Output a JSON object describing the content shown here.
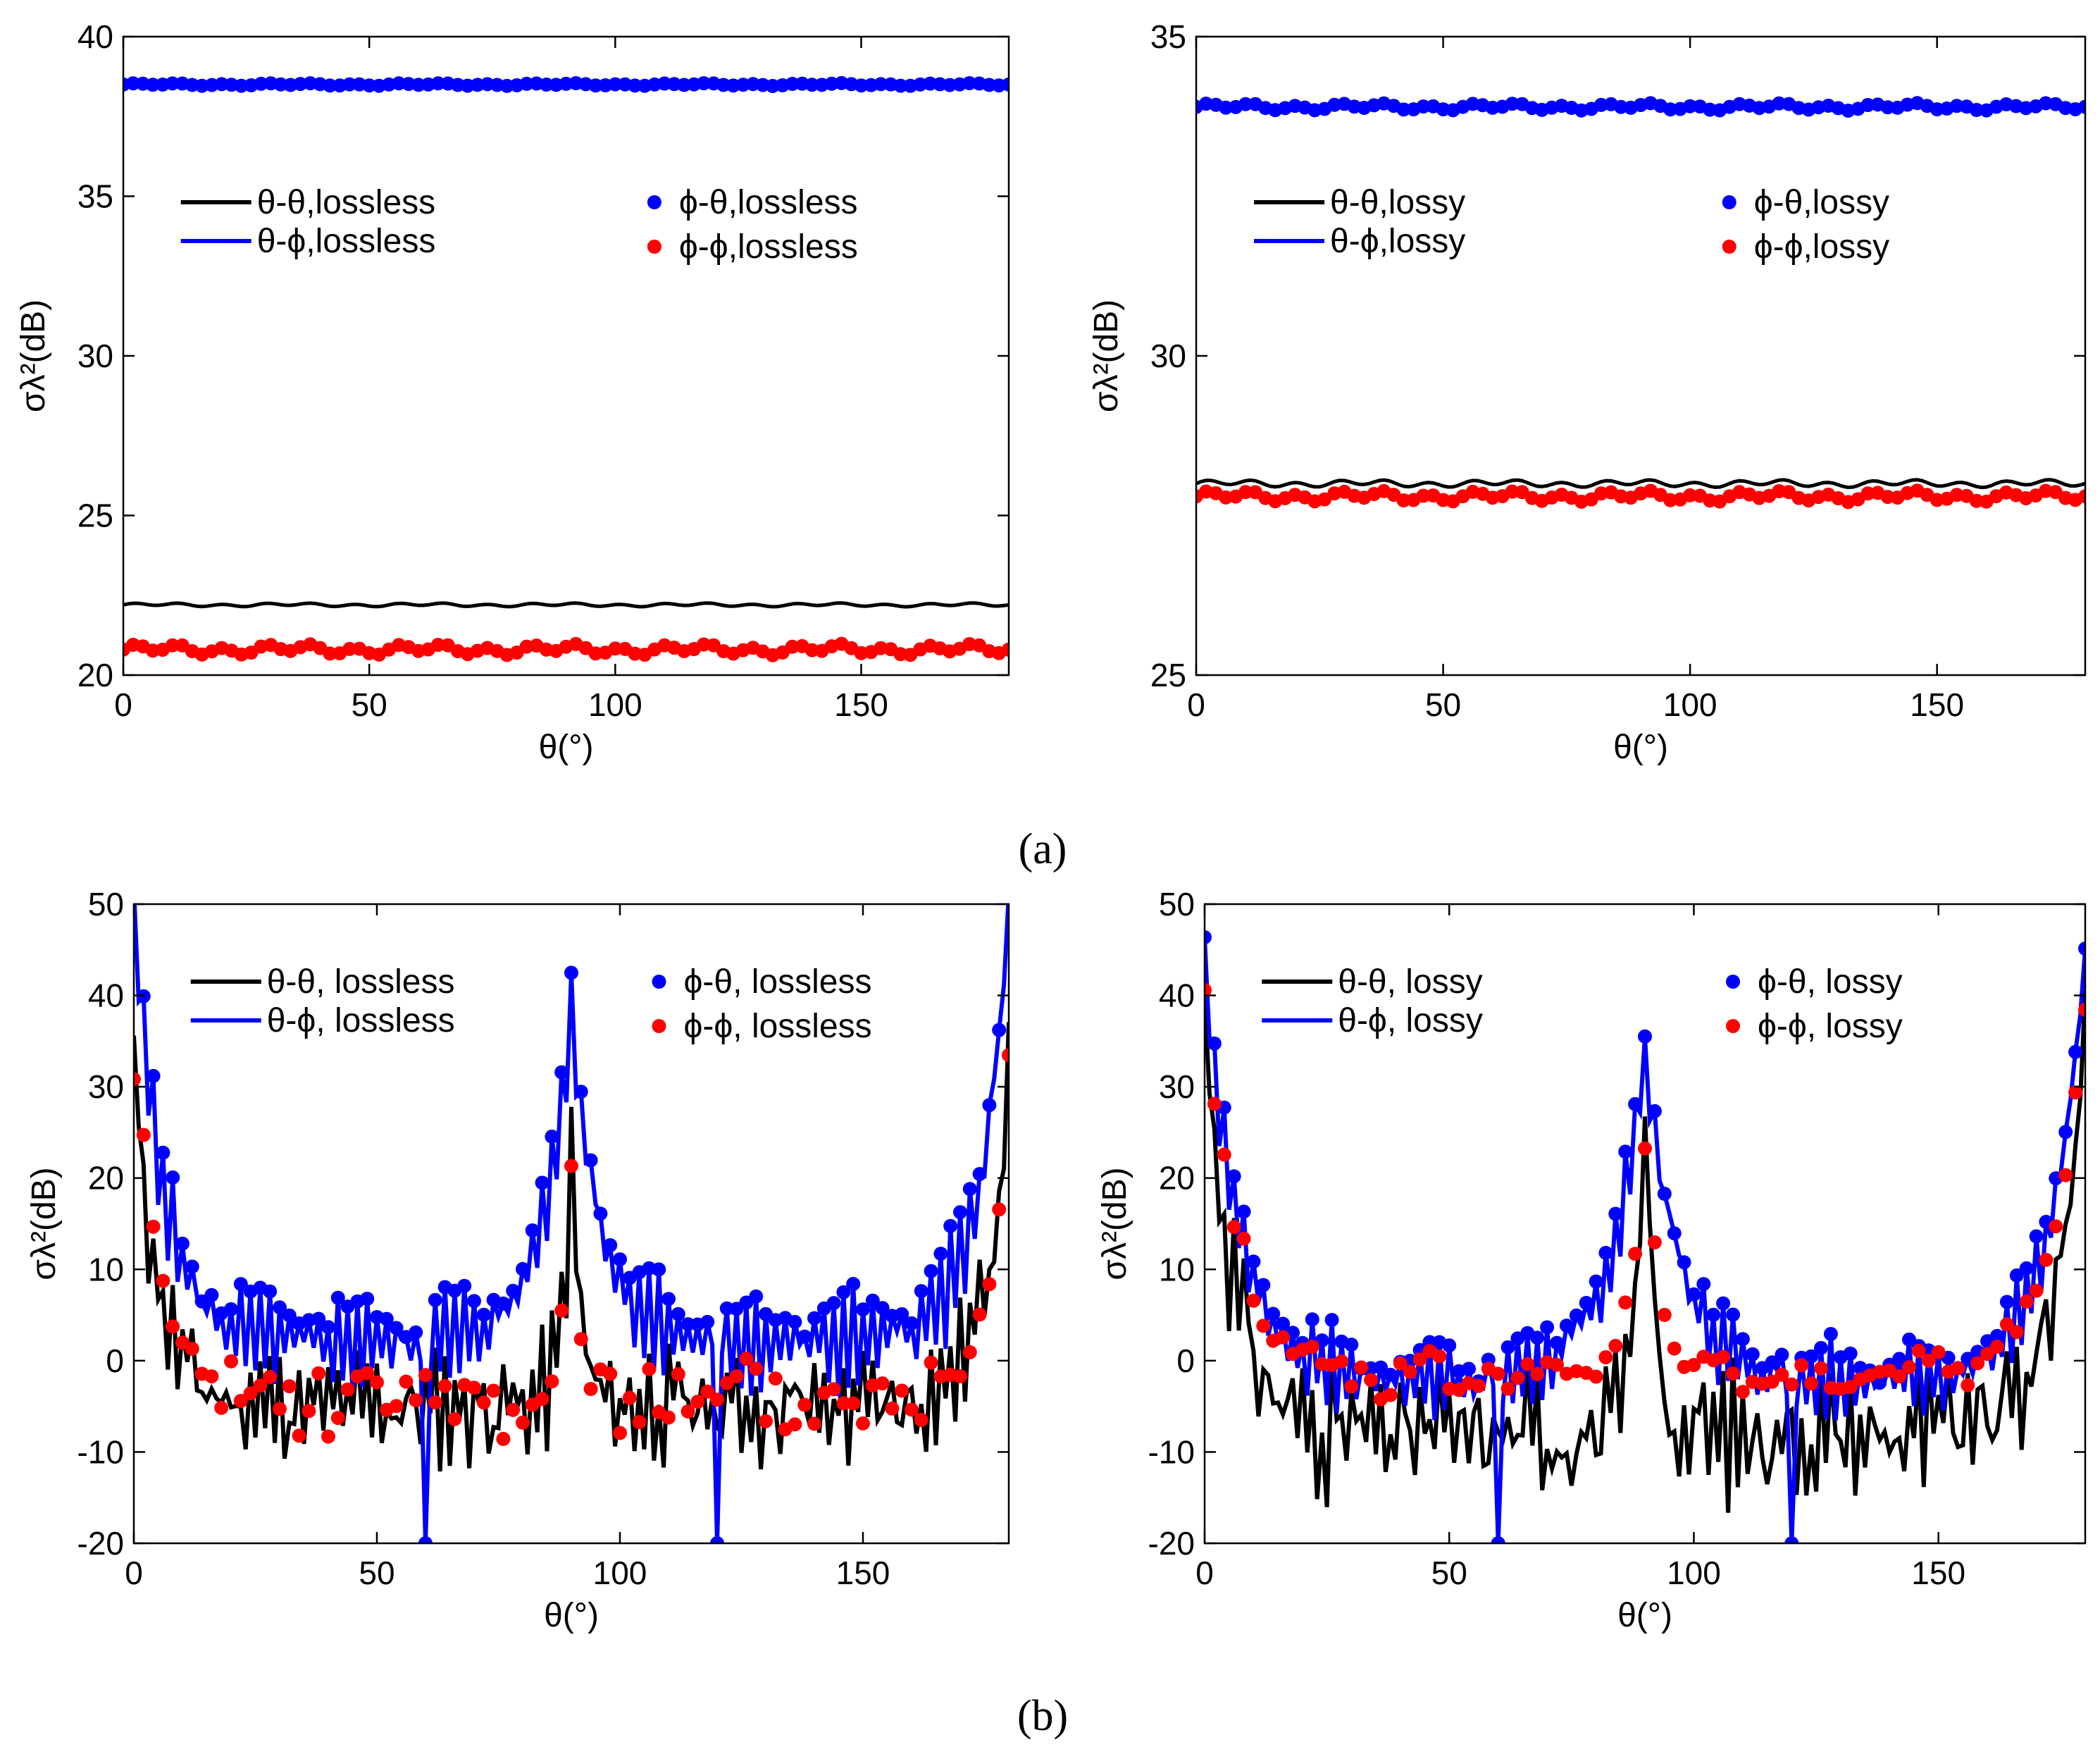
{
  "figure": {
    "label_a": "(a)",
    "label_b": "(b)"
  },
  "colors": {
    "black": "#000000",
    "blue": "#0000ff",
    "red": "#ff0000"
  },
  "chart_data": [
    {
      "id": "a-left",
      "type": "line",
      "title": "",
      "xlabel": "θ(°)",
      "ylabel": "σλ²(dB)",
      "xlim": [
        0,
        180
      ],
      "ylim": [
        20,
        40
      ],
      "xticks": [
        0,
        50,
        100,
        150
      ],
      "yticks": [
        20,
        25,
        30,
        35,
        40
      ],
      "grid": false,
      "legend_placement": "upper-middle, two columns",
      "series": [
        {
          "name": "θ-θ,lossless",
          "style": "line",
          "color": "black",
          "gen": {
            "kind": "flat",
            "level": 22.2,
            "ripple": 0.04
          }
        },
        {
          "name": "θ-ϕ,lossless",
          "style": "line",
          "color": "blue",
          "gen": {
            "kind": "flat",
            "level": 38.5,
            "ripple": 0.02
          }
        },
        {
          "name": "ϕ-θ,lossless",
          "style": "marker",
          "color": "blue",
          "gen": {
            "kind": "flat",
            "level": 38.5,
            "ripple": 0.03
          }
        },
        {
          "name": "ϕ-ϕ,lossless",
          "style": "marker",
          "color": "red",
          "gen": {
            "kind": "flat",
            "level": 20.8,
            "ripple": 0.12
          }
        }
      ]
    },
    {
      "id": "a-right",
      "type": "line",
      "title": "",
      "xlabel": "θ(°)",
      "ylabel": "σλ²(dB)",
      "xlim": [
        0,
        180
      ],
      "ylim": [
        25,
        35
      ],
      "xticks": [
        0,
        50,
        100,
        150
      ],
      "yticks": [
        25,
        30,
        35
      ],
      "grid": false,
      "legend_placement": "upper-middle, two columns",
      "series": [
        {
          "name": "θ-θ,lossy",
          "style": "line",
          "color": "black",
          "gen": {
            "kind": "flat",
            "level": 28.0,
            "ripple": 0.04
          }
        },
        {
          "name": "θ-ϕ,lossy",
          "style": "line",
          "color": "blue",
          "gen": {
            "kind": "flat",
            "level": 33.9,
            "ripple": 0.03
          }
        },
        {
          "name": "ϕ-θ,lossy",
          "style": "marker",
          "color": "blue",
          "gen": {
            "kind": "flat",
            "level": 33.9,
            "ripple": 0.04
          }
        },
        {
          "name": "ϕ-ϕ,lossy",
          "style": "marker",
          "color": "red",
          "gen": {
            "kind": "flat",
            "level": 27.8,
            "ripple": 0.06
          }
        }
      ]
    },
    {
      "id": "b-left",
      "type": "line",
      "title": "",
      "xlabel": "θ(°)",
      "ylabel": "σλ²(dB)",
      "xlim": [
        0,
        180
      ],
      "ylim": [
        -20,
        50
      ],
      "xticks": [
        0,
        50,
        100,
        150
      ],
      "yticks": [
        -20,
        -10,
        0,
        10,
        20,
        30,
        40,
        50
      ],
      "grid": false,
      "legend_placement": "upper-middle, two columns",
      "series": [
        {
          "name": "θ-θ, lossless",
          "style": "line",
          "color": "black",
          "gen": {
            "kind": "scatter",
            "edge": 32,
            "floor": -5,
            "decay": 5,
            "center": 22,
            "cwidth": 2.0,
            "osc": 4,
            "noise": 4,
            "seed": 11
          }
        },
        {
          "name": "θ-ϕ, lossless",
          "style": "line",
          "color": "blue",
          "gen": {
            "kind": "scatter",
            "edge": 49,
            "floor": 2,
            "decay": 6,
            "center": 38.5,
            "cwidth": 6,
            "osc": 5,
            "noise": 1.5,
            "seed": 5,
            "dips": [
              [
                60,
                -20
              ],
              [
                120,
                -20
              ]
            ]
          }
        },
        {
          "name": "ϕ-θ, lossless",
          "style": "marker",
          "color": "blue",
          "gen": {
            "kind": "scatter",
            "edge": 49,
            "floor": 2,
            "decay": 6,
            "center": 38.5,
            "cwidth": 6,
            "osc": 5,
            "noise": 1.5,
            "seed": 5,
            "dips": [
              [
                60,
                -20
              ],
              [
                120,
                -20
              ]
            ]
          }
        },
        {
          "name": "ϕ-ϕ, lossless",
          "style": "marker",
          "color": "red",
          "gen": {
            "kind": "scatter",
            "edge": 32,
            "floor": -6,
            "decay": 5,
            "center": 20,
            "cwidth": 1.5,
            "osc": 3,
            "noise": 4,
            "seed": 23
          }
        }
      ]
    },
    {
      "id": "b-right",
      "type": "line",
      "title": "",
      "xlabel": "θ(°)",
      "ylabel": "σλ²(dB)",
      "xlim": [
        0,
        180
      ],
      "ylim": [
        -20,
        50
      ],
      "xticks": [
        0,
        50,
        100,
        150
      ],
      "yticks": [
        -20,
        -10,
        0,
        10,
        20,
        30,
        40,
        50
      ],
      "grid": false,
      "legend_placement": "upper-middle, two columns",
      "series": [
        {
          "name": "θ-θ, lossy",
          "style": "line",
          "color": "black",
          "gen": {
            "kind": "scatter",
            "edge": 38,
            "floor": -8,
            "decay": 6,
            "center": 28,
            "cwidth": 2.0,
            "osc": 4,
            "noise": 5,
            "seed": 31
          }
        },
        {
          "name": "θ-ϕ, lossy",
          "style": "line",
          "color": "blue",
          "gen": {
            "kind": "scatter",
            "edge": 44,
            "floor": -2,
            "decay": 7,
            "center": 34,
            "cwidth": 7,
            "osc": 4,
            "noise": 1.5,
            "seed": 7,
            "dips": [
              [
                60,
                -20
              ],
              [
                120,
                -20
              ]
            ]
          }
        },
        {
          "name": "ϕ-θ, lossy",
          "style": "marker",
          "color": "blue",
          "gen": {
            "kind": "scatter",
            "edge": 44,
            "floor": -2,
            "decay": 7,
            "center": 34,
            "cwidth": 7,
            "osc": 4,
            "noise": 1.5,
            "seed": 7,
            "dips": [
              [
                60,
                -20
              ],
              [
                120,
                -20
              ]
            ]
          }
        },
        {
          "name": "ϕ-ϕ, lossy",
          "style": "marker",
          "color": "red",
          "gen": {
            "kind": "scatter",
            "edge": 38,
            "floor": -3,
            "decay": 7,
            "center": 23,
            "cwidth": 3,
            "osc": 2,
            "noise": 2,
            "seed": 41
          }
        }
      ]
    }
  ]
}
